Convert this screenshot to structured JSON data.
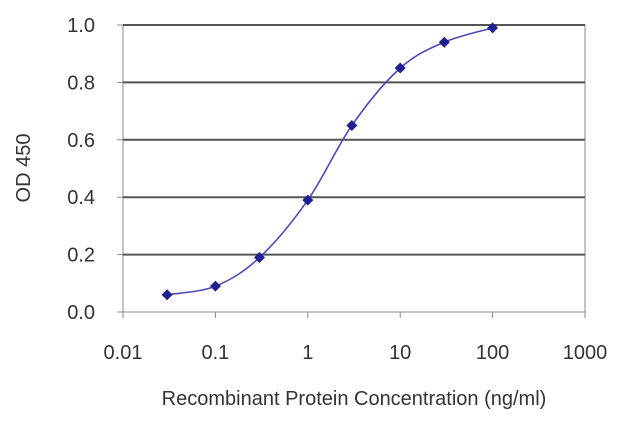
{
  "chart_data": {
    "type": "line",
    "x_scale": "log",
    "xlabel": "Recombinant Protein Concentration (ng/ml)",
    "ylabel": "OD 450",
    "xlim": [
      0.01,
      1000
    ],
    "ylim": [
      0.0,
      1.0
    ],
    "x_ticks": [
      0.01,
      0.1,
      1,
      10,
      100,
      1000
    ],
    "x_tick_labels": [
      "0.01",
      "0.1",
      "1",
      "10",
      "100",
      "1000"
    ],
    "y_ticks": [
      0.0,
      0.2,
      0.4,
      0.6,
      0.8,
      1.0
    ],
    "y_tick_labels": [
      "0.0",
      "0.2",
      "0.4",
      "0.6",
      "0.8",
      "1.0"
    ],
    "grid": "horizontal",
    "legend": "none",
    "series": [
      {
        "color": "#1f1f8f",
        "marker": "diamond",
        "points": [
          {
            "x": 0.03,
            "y": 0.06
          },
          {
            "x": 0.1,
            "y": 0.09
          },
          {
            "x": 0.3,
            "y": 0.19
          },
          {
            "x": 1,
            "y": 0.39
          },
          {
            "x": 3,
            "y": 0.65
          },
          {
            "x": 10,
            "y": 0.85
          },
          {
            "x": 30,
            "y": 0.94
          },
          {
            "x": 100,
            "y": 0.99
          }
        ]
      }
    ]
  }
}
